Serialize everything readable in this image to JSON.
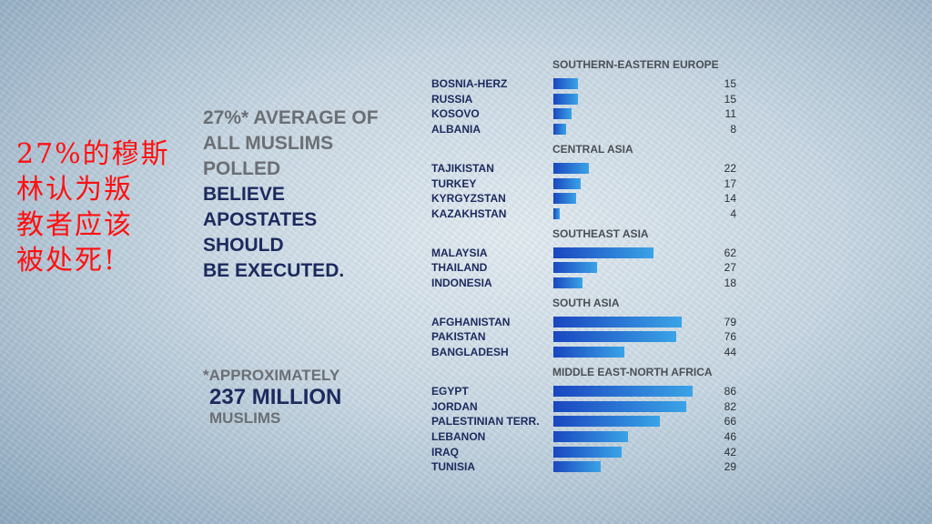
{
  "caption_zh": "27%的穆斯\n林认为叛\n教者应该\n被处死!",
  "headline": {
    "line1": "27%* AVERAGE OF",
    "line2": "ALL MUSLIMS",
    "line3": "POLLED",
    "line4": "BELIEVE",
    "line5": "APOSTATES",
    "line6": "SHOULD",
    "line7": "BE EXECUTED."
  },
  "footnote": {
    "line1": "*APPROXIMATELY",
    "line2": "237 MILLION",
    "line3": "MUSLIMS"
  },
  "colors": {
    "bar_dark": "#1a47c0",
    "bar_light": "#3aa3e6",
    "navy_text": "#1c2a5e",
    "grey_text": "#6b6f74",
    "caption": "#ff1010"
  },
  "chart_data": {
    "type": "bar",
    "orientation": "horizontal",
    "xlim": [
      0,
      100
    ],
    "groups": [
      {
        "title": "SOUTHERN-EASTERN EUROPE",
        "rows": [
          {
            "label": "BOSNIA-HERZ",
            "value": 15
          },
          {
            "label": "RUSSIA",
            "value": 15
          },
          {
            "label": "KOSOVO",
            "value": 11
          },
          {
            "label": "ALBANIA",
            "value": 8
          }
        ]
      },
      {
        "title": "CENTRAL ASIA",
        "rows": [
          {
            "label": "TAJIKISTAN",
            "value": 22
          },
          {
            "label": "TURKEY",
            "value": 17
          },
          {
            "label": "KYRGYZSTAN",
            "value": 14
          },
          {
            "label": "KAZAKHSTAN",
            "value": 4
          }
        ]
      },
      {
        "title": "SOUTHEAST ASIA",
        "rows": [
          {
            "label": "MALAYSIA",
            "value": 62
          },
          {
            "label": "THAILAND",
            "value": 27
          },
          {
            "label": "INDONESIA",
            "value": 18
          }
        ]
      },
      {
        "title": "SOUTH ASIA",
        "rows": [
          {
            "label": "AFGHANISTAN",
            "value": 79
          },
          {
            "label": "PAKISTAN",
            "value": 76
          },
          {
            "label": "BANGLADESH",
            "value": 44
          }
        ]
      },
      {
        "title": "MIDDLE EAST-NORTH AFRICA",
        "rows": [
          {
            "label": "EGYPT",
            "value": 86
          },
          {
            "label": "JORDAN",
            "value": 82
          },
          {
            "label": "PALESTINIAN TERR.",
            "value": 66
          },
          {
            "label": "LEBANON",
            "value": 46
          },
          {
            "label": "IRAQ",
            "value": 42
          },
          {
            "label": "TUNISIA",
            "value": 29
          }
        ]
      }
    ]
  }
}
